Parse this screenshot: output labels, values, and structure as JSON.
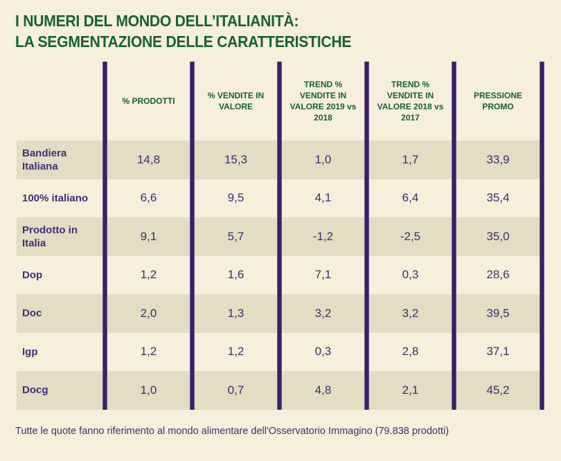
{
  "title": {
    "line1": "I NUMERI DEL MONDO DELL’ITALIANITÀ:",
    "line2": "LA SEGMENTAZIONE DELLE CARATTERISTICHE"
  },
  "table": {
    "columns": [
      "% PRODOTTI",
      "% VENDITE IN VALORE",
      "TREND % VENDITE IN VALORE 2019 vs 2018",
      "TREND % VENDITE IN VALORE 2018 vs 2017",
      "PRESSIONE PROMO"
    ],
    "rows": [
      {
        "label": "Bandiera Italiana",
        "values": [
          "14,8",
          "15,3",
          "1,0",
          "1,7",
          "33,9"
        ]
      },
      {
        "label": "100% italiano",
        "values": [
          "6,6",
          "9,5",
          "4,1",
          "6,4",
          "35,4"
        ]
      },
      {
        "label": "Prodotto in Italia",
        "values": [
          "9,1",
          "5,7",
          "-1,2",
          "-2,5",
          "35,0"
        ]
      },
      {
        "label": "Dop",
        "values": [
          "1,2",
          "1,6",
          "7,1",
          "0,3",
          "28,6"
        ]
      },
      {
        "label": "Doc",
        "values": [
          "2,0",
          "1,3",
          "3,2",
          "3,2",
          "39,5"
        ]
      },
      {
        "label": "Igp",
        "values": [
          "1,2",
          "1,2",
          "0,3",
          "2,8",
          "37,1"
        ]
      },
      {
        "label": "Docg",
        "values": [
          "1,0",
          "0,7",
          "4,8",
          "2,1",
          "45,2"
        ]
      }
    ]
  },
  "footer": {
    "note": "Tutte le quote fanno riferimento al mondo alimentare dell'Osservatorio Immagino (79.838 prodotti)"
  },
  "colors": {
    "background": "#f5efdb",
    "row_stripe": "#e2ddc3",
    "header_green": "#17603a",
    "label_purple": "#4b2a78",
    "value_purple": "#3f2b6e",
    "separator_purple": "#3a2065"
  },
  "chart_data": {
    "type": "table",
    "title": "I NUMERI DEL MONDO DELL’ITALIANITÀ: LA SEGMENTAZIONE DELLE CARATTERISTICHE",
    "columns": [
      "% PRODOTTI",
      "% VENDITE IN VALORE",
      "TREND % VENDITE IN VALORE 2019 vs 2018",
      "TREND % VENDITE IN VALORE 2018 vs 2017",
      "PRESSIONE PROMO"
    ],
    "rows": [
      {
        "category": "Bandiera Italiana",
        "pct_prodotti": 14.8,
        "pct_vendite_valore": 15.3,
        "trend_2019_vs_2018": 1.0,
        "trend_2018_vs_2017": 1.7,
        "pressione_promo": 33.9
      },
      {
        "category": "100% italiano",
        "pct_prodotti": 6.6,
        "pct_vendite_valore": 9.5,
        "trend_2019_vs_2018": 4.1,
        "trend_2018_vs_2017": 6.4,
        "pressione_promo": 35.4
      },
      {
        "category": "Prodotto in Italia",
        "pct_prodotti": 9.1,
        "pct_vendite_valore": 5.7,
        "trend_2019_vs_2018": -1.2,
        "trend_2018_vs_2017": -2.5,
        "pressione_promo": 35.0
      },
      {
        "category": "Dop",
        "pct_prodotti": 1.2,
        "pct_vendite_valore": 1.6,
        "trend_2019_vs_2018": 7.1,
        "trend_2018_vs_2017": 0.3,
        "pressione_promo": 28.6
      },
      {
        "category": "Doc",
        "pct_prodotti": 2.0,
        "pct_vendite_valore": 1.3,
        "trend_2019_vs_2018": 3.2,
        "trend_2018_vs_2017": 3.2,
        "pressione_promo": 39.5
      },
      {
        "category": "Igp",
        "pct_prodotti": 1.2,
        "pct_vendite_valore": 1.2,
        "trend_2019_vs_2018": 0.3,
        "trend_2018_vs_2017": 2.8,
        "pressione_promo": 37.1
      },
      {
        "category": "Docg",
        "pct_prodotti": 1.0,
        "pct_vendite_valore": 0.7,
        "trend_2019_vs_2018": 4.8,
        "trend_2018_vs_2017": 2.1,
        "pressione_promo": 45.2
      }
    ],
    "footnote": "Tutte le quote fanno riferimento al mondo alimentare dell'Osservatorio Immagino (79.838 prodotti)"
  }
}
